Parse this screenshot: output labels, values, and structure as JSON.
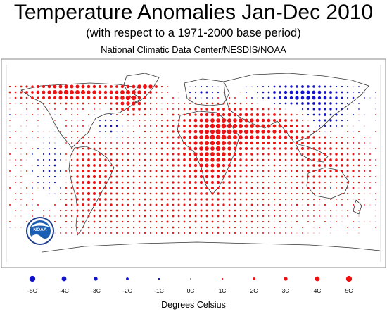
{
  "header": {
    "title": "Temperature Anomalies Jan-Dec 2010",
    "subtitle": "(with respect to a 1971-2000 base period)",
    "source": "National Climatic Data Center/NESDIS/NOAA"
  },
  "logo": {
    "text": "NOAA"
  },
  "colors": {
    "warm": "#ee1111",
    "cold": "#1111cc",
    "neutral": "#444444",
    "coastline": "#333333",
    "frame": "#888888"
  },
  "legend": {
    "title": "Degrees Celsius",
    "items": [
      {
        "label": "-5C",
        "value": -5
      },
      {
        "label": "-4C",
        "value": -4
      },
      {
        "label": "-3C",
        "value": -3
      },
      {
        "label": "-2C",
        "value": -2
      },
      {
        "label": "-1C",
        "value": -1
      },
      {
        "label": "0C",
        "value": 0
      },
      {
        "label": "1C",
        "value": 1
      },
      {
        "label": "2C",
        "value": 2
      },
      {
        "label": "3C",
        "value": 3
      },
      {
        "label": "4C",
        "value": 4
      },
      {
        "label": "5C",
        "value": 5
      }
    ]
  }
}
